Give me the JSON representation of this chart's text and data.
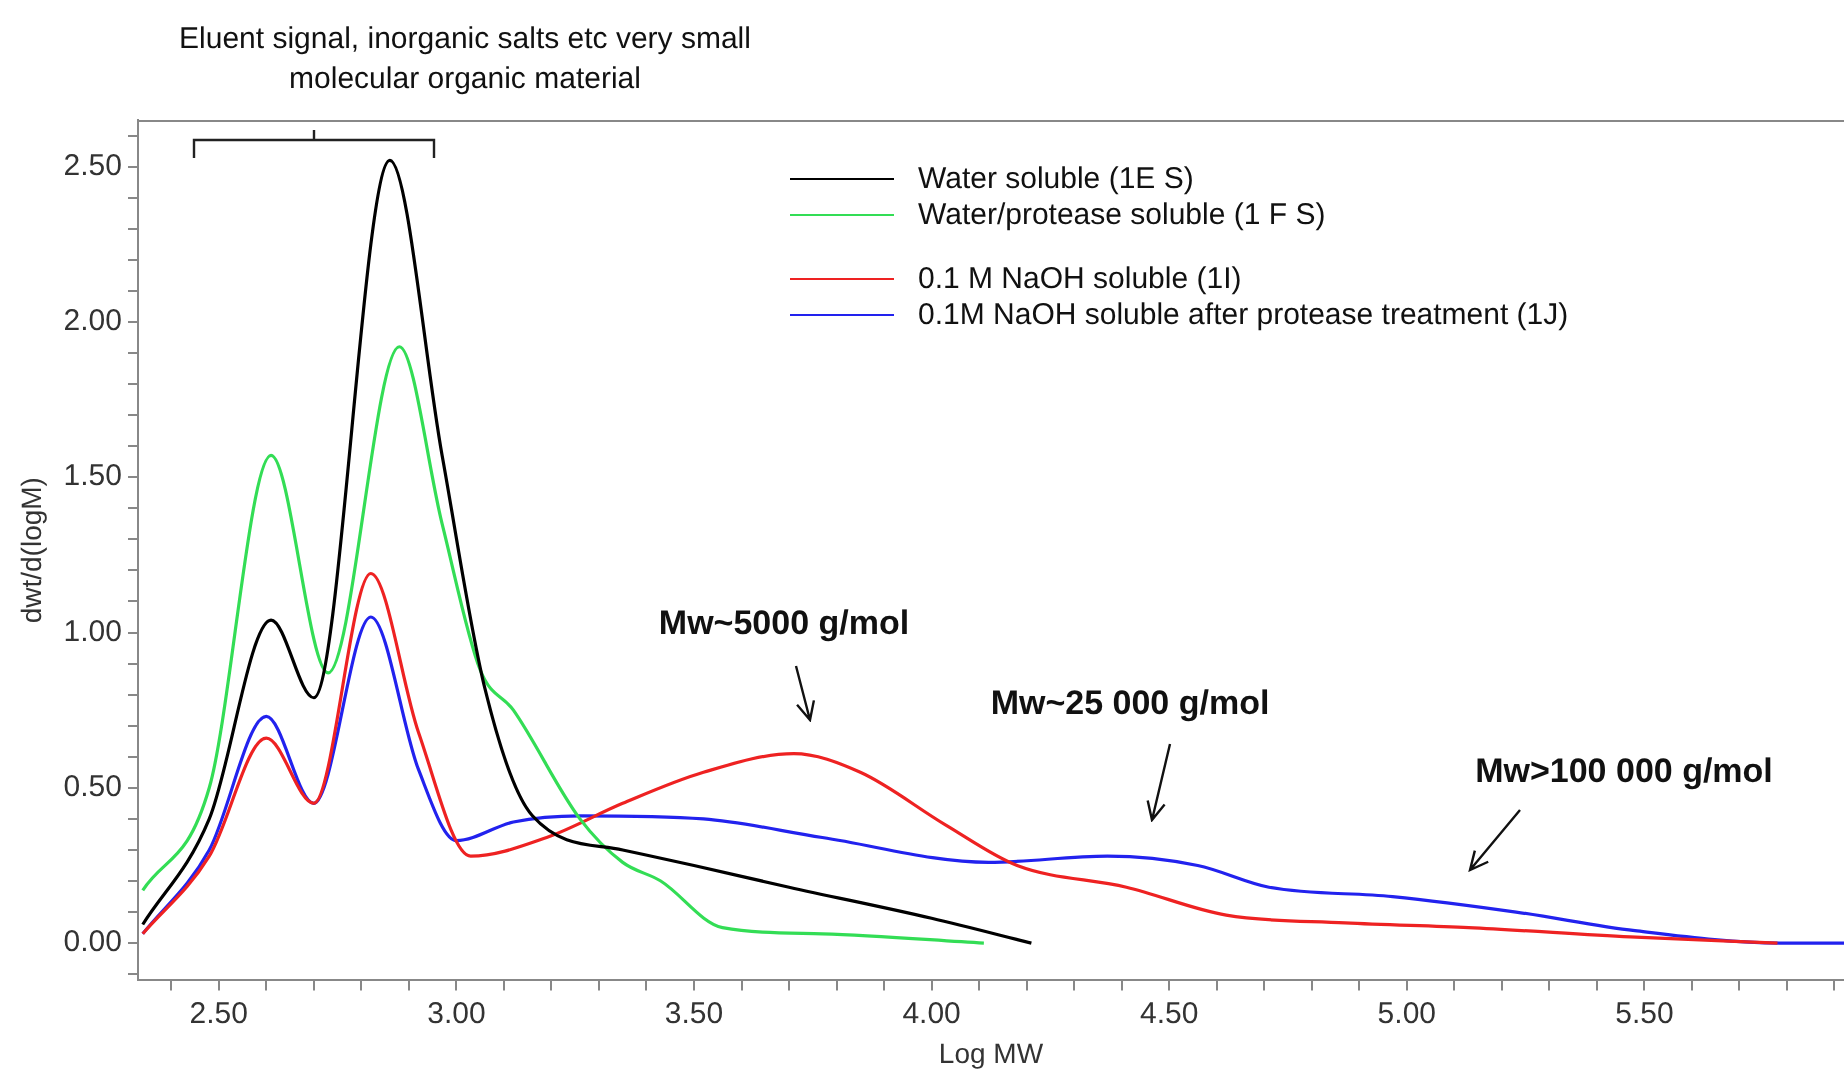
{
  "chart_data": {
    "type": "line",
    "xlabel": "Log MW",
    "ylabel": "dwt/d(logM)",
    "xlim": [
      2.33,
      5.92
    ],
    "ylim": [
      -0.12,
      2.65
    ],
    "xticks": [
      {
        "value": 2.4,
        "label": null
      },
      {
        "value": 2.5,
        "label": "2.50"
      },
      {
        "value": 2.6,
        "label": null
      },
      {
        "value": 2.7,
        "label": null
      },
      {
        "value": 2.8,
        "label": null
      },
      {
        "value": 2.9,
        "label": null
      },
      {
        "value": 3.0,
        "label": "3.00"
      },
      {
        "value": 3.1,
        "label": null
      },
      {
        "value": 3.2,
        "label": null
      },
      {
        "value": 3.3,
        "label": null
      },
      {
        "value": 3.4,
        "label": null
      },
      {
        "value": 3.5,
        "label": "3.50"
      },
      {
        "value": 3.6,
        "label": null
      },
      {
        "value": 3.7,
        "label": null
      },
      {
        "value": 3.8,
        "label": null
      },
      {
        "value": 3.9,
        "label": null
      },
      {
        "value": 4.0,
        "label": "4.00"
      },
      {
        "value": 4.1,
        "label": null
      },
      {
        "value": 4.2,
        "label": null
      },
      {
        "value": 4.3,
        "label": null
      },
      {
        "value": 4.4,
        "label": null
      },
      {
        "value": 4.5,
        "label": "4.50"
      },
      {
        "value": 4.6,
        "label": null
      },
      {
        "value": 4.7,
        "label": null
      },
      {
        "value": 4.8,
        "label": null
      },
      {
        "value": 4.9,
        "label": null
      },
      {
        "value": 5.0,
        "label": "5.00"
      },
      {
        "value": 5.1,
        "label": null
      },
      {
        "value": 5.2,
        "label": null
      },
      {
        "value": 5.3,
        "label": null
      },
      {
        "value": 5.4,
        "label": null
      },
      {
        "value": 5.5,
        "label": "5.50"
      },
      {
        "value": 5.6,
        "label": null
      },
      {
        "value": 5.7,
        "label": null
      },
      {
        "value": 5.8,
        "label": null
      },
      {
        "value": 5.9,
        "label": null
      }
    ],
    "yticks": [
      {
        "value": -0.1,
        "label": null
      },
      {
        "value": 0,
        "label": "0.00"
      },
      {
        "value": 0.1,
        "label": null
      },
      {
        "value": 0.2,
        "label": null
      },
      {
        "value": 0.3,
        "label": null
      },
      {
        "value": 0.4,
        "label": null
      },
      {
        "value": 0.5,
        "label": "0.50"
      },
      {
        "value": 0.6,
        "label": null
      },
      {
        "value": 0.7,
        "label": null
      },
      {
        "value": 0.8,
        "label": null
      },
      {
        "value": 0.9,
        "label": null
      },
      {
        "value": 1.0,
        "label": "1.00"
      },
      {
        "value": 1.1,
        "label": null
      },
      {
        "value": 1.2,
        "label": null
      },
      {
        "value": 1.3,
        "label": null
      },
      {
        "value": 1.4,
        "label": null
      },
      {
        "value": 1.5,
        "label": "1.50"
      },
      {
        "value": 1.6,
        "label": null
      },
      {
        "value": 1.7,
        "label": null
      },
      {
        "value": 1.8,
        "label": null
      },
      {
        "value": 1.9,
        "label": null
      },
      {
        "value": 2.0,
        "label": "2.00"
      },
      {
        "value": 2.1,
        "label": null
      },
      {
        "value": 2.2,
        "label": null
      },
      {
        "value": 2.3,
        "label": null
      },
      {
        "value": 2.4,
        "label": null
      },
      {
        "value": 2.5,
        "label": "2.50"
      },
      {
        "value": 2.6,
        "label": null
      }
    ],
    "grid": false,
    "legend": "top right",
    "marker": "none",
    "line_style": "solid",
    "series": [
      {
        "name": "Water soluble (1E  S)",
        "color": "#000000",
        "x": [
          2.34,
          2.48,
          2.61,
          2.7,
          2.86,
          2.97,
          3.06,
          3.16,
          3.35,
          3.5,
          3.7,
          4.0,
          4.21
        ],
        "values": [
          0.06,
          0.4,
          1.04,
          0.79,
          2.52,
          1.57,
          0.82,
          0.41,
          0.3,
          0.25,
          0.18,
          0.08,
          0.0
        ]
      },
      {
        "name": "Water/protease soluble (1 F S)",
        "color": "#33dd55",
        "x": [
          2.34,
          2.48,
          2.61,
          2.73,
          2.88,
          2.97,
          3.05,
          3.12,
          3.26,
          3.35,
          3.43,
          3.56,
          3.77,
          4.11
        ],
        "values": [
          0.17,
          0.5,
          1.57,
          0.87,
          1.92,
          1.35,
          0.88,
          0.75,
          0.4,
          0.26,
          0.2,
          0.05,
          0.03,
          0.0
        ]
      },
      {
        "name": "0.1 M NaOH soluble (1I)",
        "color": "#ee2222",
        "x": [
          2.34,
          2.48,
          2.6,
          2.7,
          2.82,
          2.92,
          3.03,
          3.19,
          3.35,
          3.52,
          3.71,
          3.85,
          4.03,
          4.18,
          4.41,
          4.62,
          4.87,
          5.13,
          5.47,
          5.78
        ],
        "values": [
          0.03,
          0.28,
          0.66,
          0.45,
          1.19,
          0.68,
          0.28,
          0.34,
          0.45,
          0.55,
          0.61,
          0.55,
          0.38,
          0.25,
          0.18,
          0.09,
          0.065,
          0.05,
          0.02,
          0.0
        ]
      },
      {
        "name": "0.1M NaOH soluble after protease treatment (1J)",
        "color": "#2222ee",
        "x": [
          2.34,
          2.48,
          2.6,
          2.7,
          2.82,
          2.92,
          3.0,
          3.12,
          3.26,
          3.52,
          3.77,
          4.12,
          4.37,
          4.56,
          4.71,
          4.97,
          5.23,
          5.48,
          5.79,
          5.92
        ],
        "values": [
          0.03,
          0.3,
          0.73,
          0.45,
          1.05,
          0.56,
          0.33,
          0.39,
          0.41,
          0.4,
          0.34,
          0.26,
          0.28,
          0.25,
          0.18,
          0.15,
          0.1,
          0.04,
          0.0,
          0.0
        ]
      }
    ],
    "annotations": [
      "Eluent signal, inorganic salts etc very small molecular organic  material",
      "Mw~5000 g/mol",
      "Mw~25 000 g/mol",
      "Mw>100 000 g/mol"
    ]
  }
}
